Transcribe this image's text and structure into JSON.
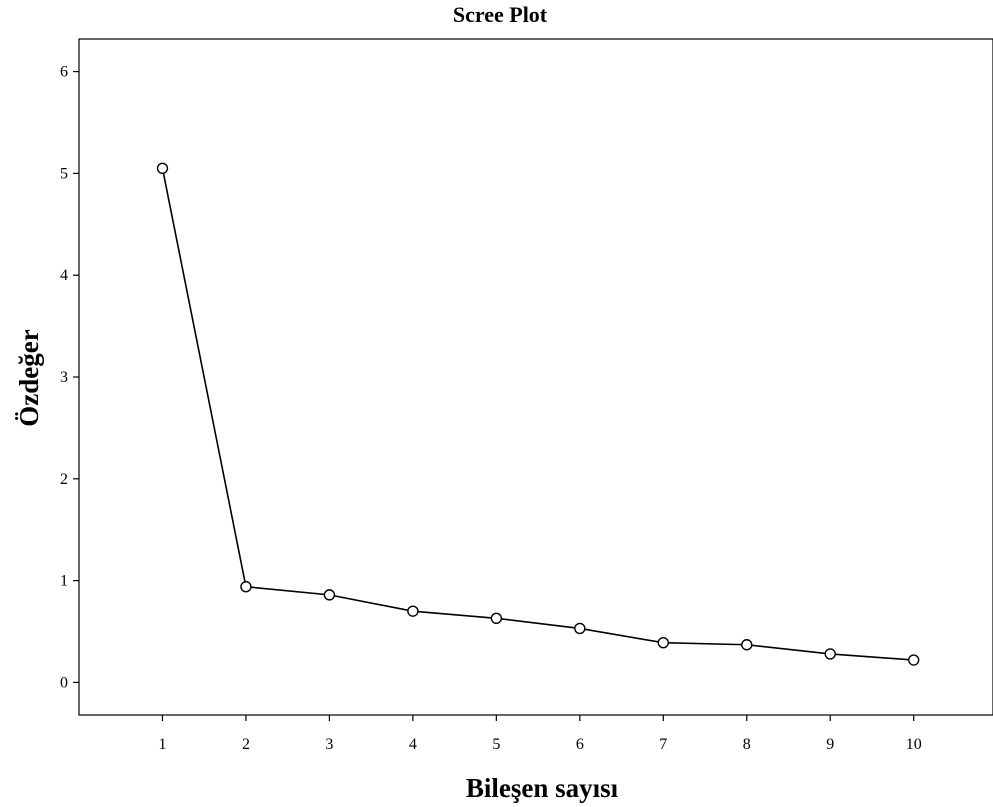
{
  "chart_data": {
    "type": "line",
    "title": "Scree Plot",
    "xlabel": "Bileşen sayısı",
    "ylabel": "Özdeğer",
    "x": [
      1,
      2,
      3,
      4,
      5,
      6,
      7,
      8,
      9,
      10
    ],
    "series": [
      {
        "values": [
          5.05,
          0.94,
          0.86,
          0.7,
          0.63,
          0.53,
          0.39,
          0.37,
          0.28,
          0.22
        ]
      }
    ],
    "x_ticks": [
      "1",
      "2",
      "3",
      "4",
      "5",
      "6",
      "7",
      "8",
      "9",
      "10"
    ],
    "y_ticks": [
      "0",
      "1",
      "2",
      "3",
      "4",
      "5",
      "6"
    ],
    "xlim": [
      0,
      10.95
    ],
    "ylim": [
      -0.32,
      6.32
    ],
    "grid": false,
    "legend": "none",
    "marker": "open-circle",
    "line_color": "#000000"
  }
}
